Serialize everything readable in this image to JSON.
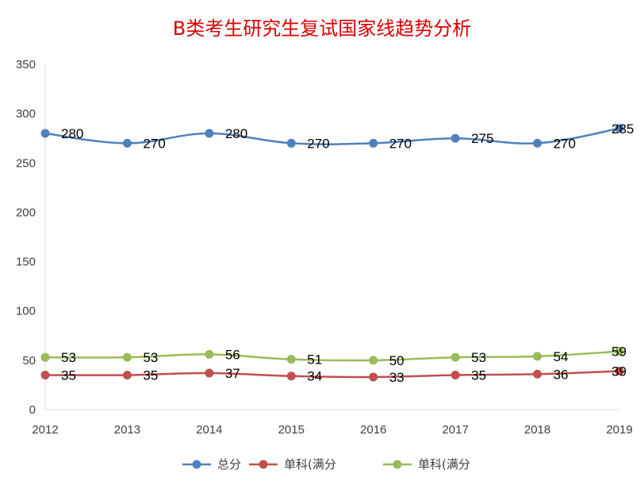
{
  "chart_data": {
    "type": "line",
    "title": "B类考生研究生复试国家线趋势分析",
    "title_color": "#d90000",
    "categories": [
      "2012",
      "2013",
      "2014",
      "2015",
      "2016",
      "2017",
      "2018",
      "2019"
    ],
    "yticks": [
      "0",
      "50",
      "100",
      "150",
      "200",
      "250",
      "300",
      "350"
    ],
    "ylim": [
      0,
      350
    ],
    "grid": false,
    "legend_position": "bottom",
    "series": [
      {
        "name": "总分",
        "color": "#4f81bd",
        "values": [
          280,
          270,
          280,
          270,
          270,
          275,
          270,
          285
        ]
      },
      {
        "name": "单科(满分",
        "color": "#c0504d",
        "values": [
          35,
          35,
          37,
          34,
          33,
          35,
          36,
          39
        ]
      },
      {
        "name": "单科(满分",
        "color": "#9bbb59",
        "values": [
          53,
          53,
          56,
          51,
          50,
          53,
          54,
          59
        ]
      }
    ]
  }
}
